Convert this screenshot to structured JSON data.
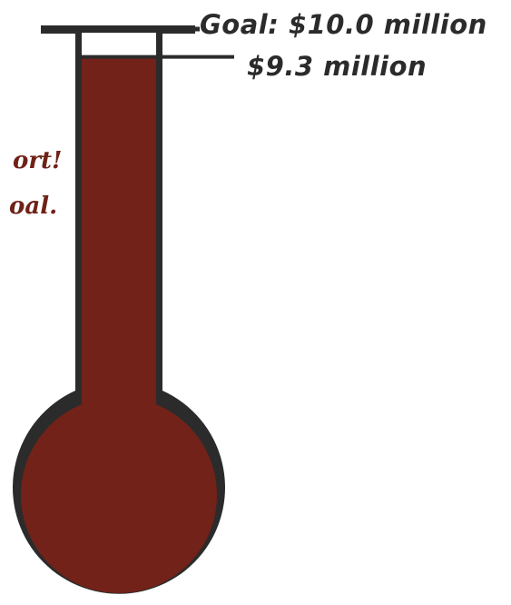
{
  "chart_data": {
    "type": "thermometer",
    "goal_value": 10.0,
    "raised_value": 9.3,
    "goal_label": "Goal: $10.0 million",
    "raised_label": "$9.3 million",
    "fill_color": "#722219",
    "outline_color": "#2b2b2b"
  },
  "side_text": {
    "line1": "ort!",
    "line2": "oal."
  }
}
